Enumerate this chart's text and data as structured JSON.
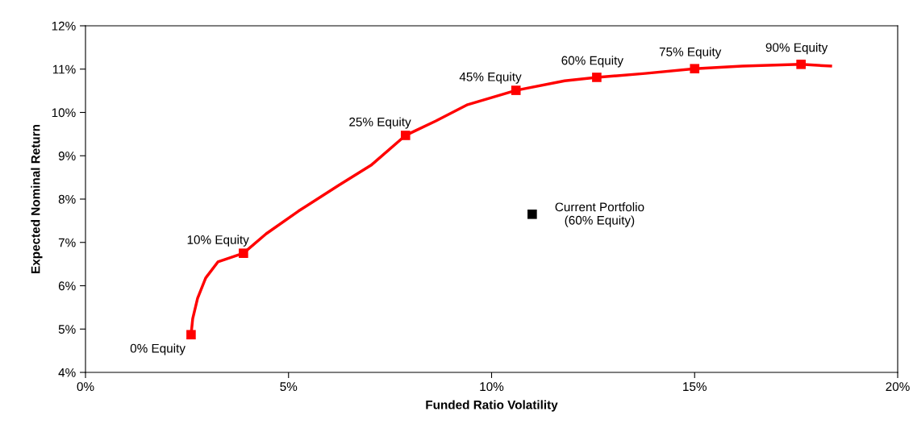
{
  "chart_data": {
    "type": "line",
    "xlabel": "Funded Ratio Volatility",
    "ylabel": "Expected Nominal Return",
    "xlim": [
      0,
      20
    ],
    "ylim": [
      4,
      12
    ],
    "xticks": [
      {
        "value": 0,
        "label": "0%"
      },
      {
        "value": 5,
        "label": "5%"
      },
      {
        "value": 10,
        "label": "10%"
      },
      {
        "value": 15,
        "label": "15%"
      },
      {
        "value": 20,
        "label": "20%"
      }
    ],
    "yticks": [
      {
        "value": 4,
        "label": "4%"
      },
      {
        "value": 5,
        "label": "5%"
      },
      {
        "value": 6,
        "label": "6%"
      },
      {
        "value": 7,
        "label": "7%"
      },
      {
        "value": 8,
        "label": "8%"
      },
      {
        "value": 9,
        "label": "9%"
      },
      {
        "value": 10,
        "label": "10%"
      },
      {
        "value": 11,
        "label": "11%"
      },
      {
        "value": 12,
        "label": "12%"
      }
    ],
    "grid": false,
    "legend": false,
    "series": [
      {
        "color": "#ff0000",
        "marker": "none",
        "x": [
          2.6,
          2.64,
          2.76,
          2.96,
          3.26,
          3.89,
          4.45,
          5.24,
          6.24,
          7.03,
          7.88,
          8.62,
          9.41,
          10.6,
          11.8,
          12.59,
          13.78,
          15.0,
          16.17,
          17.62,
          18.35
        ],
        "values": [
          4.87,
          5.24,
          5.71,
          6.18,
          6.55,
          6.75,
          7.2,
          7.72,
          8.32,
          8.78,
          9.47,
          9.8,
          10.18,
          10.51,
          10.73,
          10.81,
          10.9,
          11.01,
          11.07,
          11.11,
          11.07
        ]
      },
      {
        "type": "scatter",
        "color": "#ff0000",
        "marker": "square",
        "x": [
          2.6,
          3.89,
          7.88,
          10.6,
          12.59,
          15.0,
          17.62
        ],
        "values": [
          4.87,
          6.75,
          9.47,
          10.51,
          10.81,
          11.01,
          11.11
        ]
      },
      {
        "type": "scatter",
        "color": "#000000",
        "marker": "square",
        "x": [
          11.0
        ],
        "values": [
          7.65
        ]
      }
    ],
    "annotations": [
      {
        "text": "0% Equity",
        "x": 2.6,
        "y": 4.87
      },
      {
        "text": "10% Equity",
        "x": 3.89,
        "y": 6.75
      },
      {
        "text": "25% Equity",
        "x": 7.88,
        "y": 9.47
      },
      {
        "text": "45% Equity",
        "x": 10.6,
        "y": 10.51
      },
      {
        "text": "60% Equity",
        "x": 12.59,
        "y": 10.81
      },
      {
        "text": "75% Equity",
        "x": 15.0,
        "y": 11.01
      },
      {
        "text": "90% Equity",
        "x": 17.62,
        "y": 11.11
      },
      "Current Portfolio\n(60% Equity)"
    ]
  }
}
